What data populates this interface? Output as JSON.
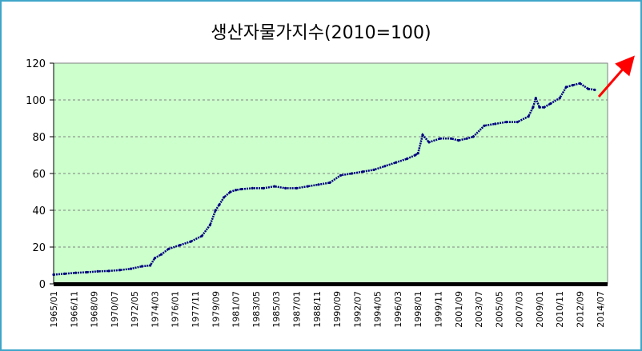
{
  "chart_data": {
    "type": "line",
    "title": "생산자물가지수(2010=100)",
    "xlabel": "",
    "ylabel": "",
    "ylim": [
      0,
      120
    ],
    "yticks": [
      0,
      20,
      40,
      60,
      80,
      100,
      120
    ],
    "grid": true,
    "legend": "none",
    "plot_background": "#ccffcc",
    "line_color": "#000080",
    "arrow_color": "#ff0000",
    "x_tick_labels": [
      "1965/01",
      "1966/11",
      "1968/09",
      "1970/07",
      "1972/05",
      "1974/03",
      "1976/01",
      "1977/11",
      "1979/09",
      "1981/07",
      "1983/05",
      "1985/03",
      "1987/01",
      "1988/11",
      "1990/09",
      "1992/07",
      "1994/05",
      "1996/03",
      "1998/01",
      "1999/11",
      "2001/09",
      "2003/07",
      "2005/05",
      "2007/03",
      "2009/01",
      "2010/11",
      "2012/09",
      "2014/07"
    ],
    "series": [
      {
        "x": [
          "1965/01",
          "1966/01",
          "1967/01",
          "1968/01",
          "1969/01",
          "1970/01",
          "1971/01",
          "1972/01",
          "1973/01",
          "1973/10",
          "1974/03",
          "1974/10",
          "1975/06",
          "1976/06",
          "1977/06",
          "1978/06",
          "1979/03",
          "1979/09",
          "1980/01",
          "1980/06",
          "1981/01",
          "1981/07",
          "1982/01",
          "1983/01",
          "1984/01",
          "1985/01",
          "1986/01",
          "1987/01",
          "1988/01",
          "1989/01",
          "1990/01",
          "1991/01",
          "1992/01",
          "1993/01",
          "1994/01",
          "1995/01",
          "1996/01",
          "1997/01",
          "1997/10",
          "1998/01",
          "1998/06",
          "1999/01",
          "2000/01",
          "2001/01",
          "2001/09",
          "2002/06",
          "2003/01",
          "2004/01",
          "2005/01",
          "2006/01",
          "2007/01",
          "2008/01",
          "2008/06",
          "2008/09",
          "2009/01",
          "2009/06",
          "2010/01",
          "2010/11",
          "2011/06",
          "2012/01",
          "2012/09",
          "2013/06",
          "2014/01"
        ],
        "values": [
          5,
          5.5,
          6,
          6.3,
          6.8,
          7,
          7.5,
          8.2,
          9.5,
          10,
          14,
          16,
          19,
          21,
          23,
          26,
          32,
          40,
          43,
          47,
          50,
          51,
          51.5,
          52,
          52,
          53,
          52,
          52,
          53,
          54,
          55,
          59,
          60,
          61,
          62,
          64,
          66,
          68,
          70,
          71,
          81,
          77,
          79,
          79,
          78,
          79,
          80,
          86,
          87,
          88,
          88,
          91,
          96,
          101,
          96,
          96,
          98,
          101,
          107,
          108,
          109,
          106,
          105.5
        ]
      }
    ]
  }
}
